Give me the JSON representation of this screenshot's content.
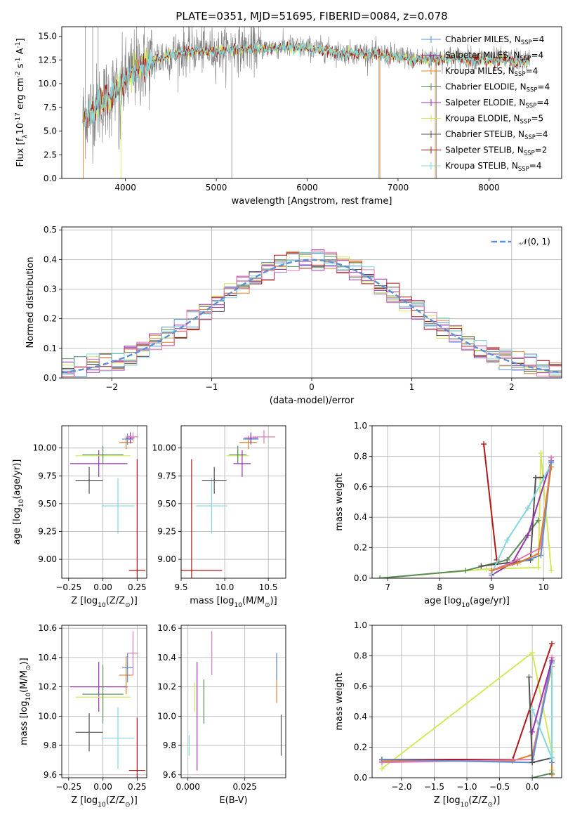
{
  "colors": {
    "chabrier_miles": "#5b8fd6",
    "salpeter_miles": "#9b30b0",
    "kroupa_miles": "#e0802a",
    "chabrier_elodie": "#5a8a5a",
    "salpeter_elodie": "#9b30b0",
    "kroupa_elodie": "#d4e85a",
    "chabrier_stelib": "#505050",
    "salpeter_stelib": "#b01818",
    "kroupa_stelib": "#7fd8dc",
    "pink": "#e07ab0",
    "gray_spec": "#808080",
    "gauss": "#5b8fd6",
    "grid": "#b0b0b0"
  },
  "chart_data": [
    {
      "id": "spectrum",
      "type": "line",
      "title": "PLATE=0351, MJD=51695, FIBERID=0084, z=0.078",
      "xlabel": "wavelength [Angstrom, rest frame]",
      "ylabel": "Flux [f$_\\lambda$10$^{-17}$ erg cm$^{-2}$ s$^{-1}$ A$^{-1}$]",
      "xlim": [
        3300,
        8800
      ],
      "ylim": [
        0,
        16
      ],
      "xticks": [
        "4000",
        "5000",
        "6000",
        "7000",
        "8000"
      ],
      "yticks": [
        "0.0",
        "2.5",
        "5.0",
        "7.5",
        "10.0",
        "12.5",
        "15.0"
      ],
      "continuum": {
        "x": [
          3550,
          3600,
          3700,
          3800,
          3900,
          4000,
          4100,
          4200,
          4300,
          4400,
          4600,
          4800,
          5000,
          5200,
          5400,
          5600,
          5800,
          6000,
          6200,
          6400,
          6600,
          6800,
          7000,
          7200,
          7400,
          7600,
          7800,
          8000,
          8200,
          8400
        ],
        "y": [
          6.5,
          7.0,
          7.8,
          8.5,
          9.5,
          10.2,
          11.5,
          12.0,
          12.4,
          12.8,
          13.3,
          13.6,
          13.4,
          13.8,
          13.7,
          13.8,
          13.9,
          13.8,
          13.6,
          13.2,
          13.3,
          13.1,
          12.9,
          12.6,
          12.7,
          12.8,
          12.7,
          12.6,
          12.5,
          12.4
        ]
      },
      "legend": [
        {
          "label": "Chabrier MILES, N",
          "sub": "SSP",
          "tail": "=4",
          "color": "chabrier_miles"
        },
        {
          "label": "Salpeter MILES, N",
          "sub": "SSP",
          "tail": "=4",
          "color": "salpeter_miles"
        },
        {
          "label": "Kroupa MILES, N",
          "sub": "SSP",
          "tail": "=4",
          "color": "kroupa_miles"
        },
        {
          "label": "Chabrier ELODIE, N",
          "sub": "SSP",
          "tail": "=4",
          "color": "chabrier_elodie"
        },
        {
          "label": "Salpeter ELODIE, N",
          "sub": "SSP",
          "tail": "=4",
          "color": "salpeter_elodie"
        },
        {
          "label": "Kroupa ELODIE, N",
          "sub": "SSP",
          "tail": "=5",
          "color": "kroupa_elodie"
        },
        {
          "label": "Chabrier STELIB, N",
          "sub": "SSP",
          "tail": "=4",
          "color": "chabrier_stelib"
        },
        {
          "label": "Salpeter STELIB, N",
          "sub": "SSP",
          "tail": "=2",
          "color": "salpeter_stelib"
        },
        {
          "label": "Kroupa STELIB, N",
          "sub": "SSP",
          "tail": "=4",
          "color": "kroupa_stelib"
        }
      ],
      "legend_position": "right"
    },
    {
      "id": "residual",
      "type": "line",
      "xlabel": "(data-model)/error",
      "ylabel": "Normed distribution",
      "xlim": [
        -2.5,
        2.5
      ],
      "ylim": [
        0,
        0.51
      ],
      "xticks": [
        "−2",
        "−1",
        "0",
        "1",
        "2"
      ],
      "yticks": [
        "0.0",
        "0.1",
        "0.2",
        "0.3",
        "0.4",
        "0.5"
      ],
      "legend": [
        {
          "label": "𝒩(0, 1)",
          "color": "gauss",
          "style": "dashed"
        }
      ],
      "legend_position": "top-right",
      "grid": true
    },
    {
      "id": "age_vs_Z",
      "type": "scatter",
      "xlabel": "Z [log$_{10}$(Z/Z$_\\odot$)]",
      "ylabel": "age  [log$_{10}$($age/yr$)]",
      "xlim": [
        -0.3,
        0.32
      ],
      "ylim": [
        8.83,
        10.2
      ],
      "xticks": [
        "−0.25",
        "0.00",
        "0.25"
      ],
      "yticks": [
        "9.00",
        "9.25",
        "9.50",
        "9.75",
        "10.00"
      ],
      "points": [
        {
          "x": -0.1,
          "xerr": 0.1,
          "y": 9.71,
          "yerr": 0.12,
          "color": "chabrier_stelib"
        },
        {
          "x": -0.03,
          "xerr": 0.21,
          "y": 9.86,
          "yerr": 0.12,
          "color": "salpeter_elodie"
        },
        {
          "x": 0.0,
          "xerr": 0.2,
          "y": 9.93,
          "yerr": 0.06,
          "color": "kroupa_elodie"
        },
        {
          "x": 0.0,
          "xerr": 0.15,
          "y": 9.94,
          "yerr": 0.08,
          "color": "chabrier_elodie"
        },
        {
          "x": 0.11,
          "xerr": 0.12,
          "y": 9.48,
          "yerr": 0.25,
          "color": "kroupa_stelib"
        },
        {
          "x": 0.17,
          "xerr": 0.05,
          "y": 10.05,
          "yerr": 0.06,
          "color": "kroupa_miles"
        },
        {
          "x": 0.18,
          "xerr": 0.04,
          "y": 10.08,
          "yerr": 0.05,
          "color": "chabrier_miles"
        },
        {
          "x": 0.2,
          "xerr": 0.03,
          "y": 10.09,
          "yerr": 0.05,
          "color": "salpeter_miles"
        },
        {
          "x": 0.22,
          "xerr": 0.04,
          "y": 10.1,
          "yerr": 0.04,
          "color": "pink"
        },
        {
          "x": 0.25,
          "xerr": 0.06,
          "y": 8.9,
          "yerr": 1.0,
          "color": "salpeter_stelib"
        }
      ],
      "grid": true
    },
    {
      "id": "age_vs_mass",
      "type": "scatter",
      "xlabel": "mass [log$_{10}$($M/M_\\odot$)]",
      "ylabel": "",
      "xlim": [
        9.5,
        10.7
      ],
      "ylim": [
        8.83,
        10.2
      ],
      "xticks": [
        "9.0",
        "9.5",
        "10.0",
        "10.5"
      ],
      "yticks": [
        "9.00",
        "9.25",
        "9.50",
        "9.75",
        "10.00"
      ],
      "points": [
        {
          "x": 9.62,
          "xerr": 0.35,
          "y": 8.9,
          "yerr": 1.0,
          "color": "salpeter_stelib"
        },
        {
          "x": 9.85,
          "xerr": 0.18,
          "y": 9.48,
          "yerr": 0.25,
          "color": "kroupa_stelib"
        },
        {
          "x": 9.88,
          "xerr": 0.14,
          "y": 9.71,
          "yerr": 0.12,
          "color": "chabrier_stelib"
        },
        {
          "x": 10.15,
          "xerr": 0.13,
          "y": 9.93,
          "yerr": 0.06,
          "color": "kroupa_elodie"
        },
        {
          "x": 10.15,
          "xerr": 0.1,
          "y": 9.94,
          "yerr": 0.08,
          "color": "chabrier_elodie"
        },
        {
          "x": 10.2,
          "xerr": 0.1,
          "y": 9.86,
          "yerr": 0.12,
          "color": "salpeter_elodie"
        },
        {
          "x": 10.27,
          "xerr": 0.1,
          "y": 10.05,
          "yerr": 0.06,
          "color": "kroupa_miles"
        },
        {
          "x": 10.3,
          "xerr": 0.09,
          "y": 10.08,
          "yerr": 0.05,
          "color": "chabrier_miles"
        },
        {
          "x": 10.3,
          "xerr": 0.08,
          "y": 10.09,
          "yerr": 0.05,
          "color": "salpeter_miles"
        },
        {
          "x": 10.45,
          "xerr": 0.13,
          "y": 10.1,
          "yerr": 0.06,
          "color": "pink"
        }
      ],
      "grid": true
    },
    {
      "id": "massweight_vs_age",
      "type": "line",
      "xlabel": "age  [log$_{10}$($age/yr$)]",
      "ylabel": "mass weight",
      "xlim": [
        6.7,
        10.35
      ],
      "ylim": [
        0,
        1.0
      ],
      "xticks": [
        "7",
        "8",
        "9",
        "10"
      ],
      "yticks": [
        "0.0",
        "0.2",
        "0.4",
        "0.6",
        "0.8",
        "1.0"
      ],
      "series": [
        {
          "color": "salpeter_stelib",
          "x": [
            8.85,
            9.1
          ],
          "y": [
            0.88,
            0.12
          ]
        },
        {
          "color": "kroupa_elodie",
          "x": [
            6.85,
            8.9,
            9.9,
            9.95,
            10.15
          ],
          "y": [
            0.0,
            0.06,
            0.07,
            0.82,
            0.05
          ]
        },
        {
          "color": "chabrier_elodie",
          "x": [
            6.85,
            8.5,
            9.3,
            9.9
          ],
          "y": [
            0.0,
            0.05,
            0.12,
            0.38
          ]
        },
        {
          "color": "chabrier_stelib",
          "x": [
            8.8,
            9.3,
            9.75,
            9.85,
            10.0
          ],
          "y": [
            0.08,
            0.1,
            0.12,
            0.66,
            0.66
          ]
        },
        {
          "color": "salpeter_miles",
          "x": [
            9.0,
            9.4,
            9.7,
            10.15
          ],
          "y": [
            0.02,
            0.1,
            0.28,
            0.77
          ]
        },
        {
          "color": "kroupa_stelib",
          "x": [
            9.0,
            9.3,
            9.7,
            10.15
          ],
          "y": [
            0.03,
            0.25,
            0.46,
            0.75
          ]
        },
        {
          "color": "pink",
          "x": [
            9.0,
            9.5,
            9.95,
            10.15
          ],
          "y": [
            0.05,
            0.12,
            0.2,
            0.79
          ]
        },
        {
          "color": "chabrier_miles",
          "x": [
            9.0,
            9.5,
            9.95,
            10.15
          ],
          "y": [
            0.05,
            0.1,
            0.15,
            0.76
          ]
        },
        {
          "color": "kroupa_miles",
          "x": [
            9.0,
            9.5,
            9.9,
            10.15
          ],
          "y": [
            0.05,
            0.1,
            0.16,
            0.73
          ]
        }
      ],
      "grid": true
    },
    {
      "id": "mass_vs_Z",
      "type": "scatter",
      "xlabel": "Z [log$_{10}$(Z/Z$_\\odot$)]",
      "ylabel": "mass [log$_{10}$($M/M_\\odot$)]",
      "xlim": [
        -0.3,
        0.32
      ],
      "ylim": [
        9.58,
        10.62
      ],
      "xticks": [
        "−0.25",
        "0.00",
        "0.25"
      ],
      "yticks": [
        "9.6",
        "9.8",
        "10.0",
        "10.2",
        "10.4",
        "10.6"
      ],
      "points": [
        {
          "x": -0.1,
          "xerr": 0.1,
          "y": 9.89,
          "yerr": 0.13,
          "color": "chabrier_stelib"
        },
        {
          "x": -0.03,
          "xerr": 0.21,
          "y": 10.2,
          "yerr": 0.17,
          "color": "salpeter_elodie"
        },
        {
          "x": 0.0,
          "xerr": 0.2,
          "y": 10.13,
          "yerr": 0.1,
          "color": "kroupa_elodie"
        },
        {
          "x": 0.0,
          "xerr": 0.15,
          "y": 10.15,
          "yerr": 0.2,
          "color": "chabrier_elodie"
        },
        {
          "x": 0.11,
          "xerr": 0.12,
          "y": 9.85,
          "yerr": 0.21,
          "color": "kroupa_stelib"
        },
        {
          "x": 0.17,
          "xerr": 0.05,
          "y": 10.28,
          "yerr": 0.13,
          "color": "kroupa_miles"
        },
        {
          "x": 0.18,
          "xerr": 0.04,
          "y": 10.33,
          "yerr": 0.1,
          "color": "chabrier_miles"
        },
        {
          "x": 0.22,
          "xerr": 0.04,
          "y": 10.43,
          "yerr": 0.15,
          "color": "pink"
        },
        {
          "x": 0.25,
          "xerr": 0.06,
          "y": 9.63,
          "yerr": 0.36,
          "color": "salpeter_stelib"
        }
      ],
      "grid": true
    },
    {
      "id": "mass_vs_ebv",
      "type": "scatter",
      "xlabel": "E(B-V)",
      "ylabel": "",
      "xlim": [
        -0.003,
        0.043
      ],
      "ylim": [
        9.58,
        10.62
      ],
      "xticks": [
        "0.000",
        "0.025"
      ],
      "yticks": [
        "9.6",
        "9.8",
        "10.0",
        "10.2",
        "10.4",
        "10.6"
      ],
      "points": [
        {
          "x": 0.0005,
          "y": 9.8,
          "yerr": 0.07,
          "color": "kroupa_stelib"
        },
        {
          "x": 0.003,
          "y": 10.13,
          "yerr": 0.1,
          "color": "kroupa_elodie"
        },
        {
          "x": 0.004,
          "y": 10.0,
          "yerr": 0.37,
          "color": "salpeter_elodie"
        },
        {
          "x": 0.007,
          "y": 10.1,
          "yerr": 0.15,
          "color": "chabrier_elodie"
        },
        {
          "x": 0.0105,
          "y": 10.43,
          "yerr": 0.15,
          "color": "pink"
        },
        {
          "x": 0.039,
          "y": 10.26,
          "yerr": 0.17,
          "color": "kroupa_miles"
        },
        {
          "x": 0.039,
          "y": 10.34,
          "yerr": 0.09,
          "color": "chabrier_miles"
        },
        {
          "x": 0.041,
          "y": 9.87,
          "yerr": 0.14,
          "color": "chabrier_stelib"
        }
      ],
      "grid": true
    },
    {
      "id": "massweight_vs_Z",
      "type": "line",
      "xlabel": "Z [log$_{10}$(Z/Z$_\\odot$)]",
      "ylabel": "mass weight",
      "xlim": [
        -2.45,
        0.45
      ],
      "ylim": [
        0,
        1.0
      ],
      "xticks": [
        "−2.0",
        "−1.5",
        "−1.0",
        "−0.5",
        "0.0"
      ],
      "yticks": [
        "0.0",
        "0.2",
        "0.4",
        "0.6",
        "0.8",
        "1.0"
      ],
      "series": [
        {
          "color": "kroupa_elodie",
          "x": [
            -2.3,
            0.0,
            0.3,
            0.3
          ],
          "y": [
            0.06,
            0.82,
            0.17,
            0.05
          ]
        },
        {
          "color": "salpeter_stelib",
          "x": [
            -2.3,
            -0.3,
            0.3
          ],
          "y": [
            0.12,
            0.12,
            0.88
          ]
        },
        {
          "color": "kroupa_miles",
          "x": [
            -2.3,
            -0.3,
            0.0,
            0.3,
            0.3
          ],
          "y": [
            0.11,
            0.11,
            0.15,
            0.73,
            0.02
          ]
        },
        {
          "color": "pink",
          "x": [
            -2.3,
            0.0,
            0.3
          ],
          "y": [
            0.1,
            0.12,
            0.79
          ]
        },
        {
          "color": "chabrier_miles",
          "x": [
            -2.3,
            0.0,
            0.3,
            0.3
          ],
          "y": [
            0.12,
            0.1,
            0.76,
            0.1
          ]
        },
        {
          "color": "chabrier_stelib",
          "x": [
            -0.05,
            0.0,
            0.3
          ],
          "y": [
            0.66,
            0.1,
            0.13
          ]
        },
        {
          "color": "kroupa_stelib",
          "x": [
            0.0,
            0.3,
            0.3
          ],
          "y": [
            0.45,
            0.13,
            0.75
          ]
        },
        {
          "color": "chabrier_elodie",
          "x": [
            0.0,
            0.3
          ],
          "y": [
            0.0,
            0.03
          ]
        },
        {
          "color": "salpeter_miles",
          "x": [
            0.0,
            0.3
          ],
          "y": [
            0.3,
            0.77
          ]
        }
      ],
      "grid": true
    }
  ]
}
